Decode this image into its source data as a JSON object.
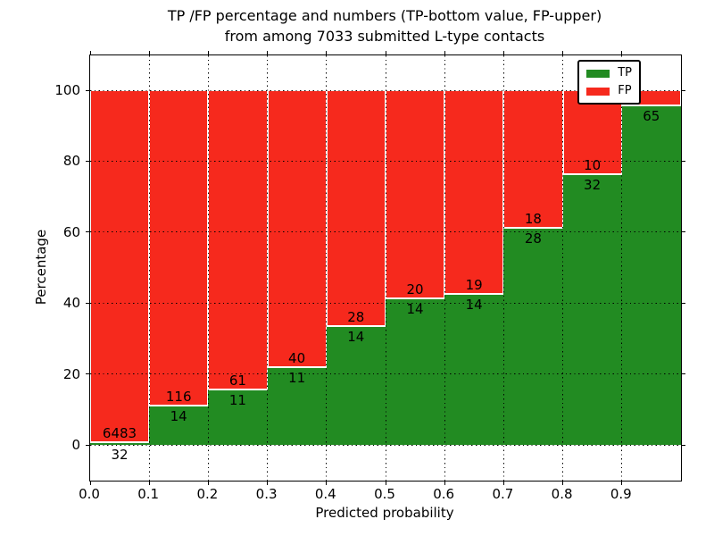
{
  "figure": {
    "title_line1": "TP /FP percentage and numbers (TP-bottom value, FP-upper)",
    "title_line2": "from among 7033 submitted L-type contacts",
    "xlabel": "Predicted probability",
    "ylabel": "Percentage",
    "background_color": "#ffffff",
    "axis_color": "#000000",
    "legend_items": [
      {
        "label": "TP",
        "color": "#228b22"
      },
      {
        "label": "FP",
        "color": "#f6291d"
      }
    ]
  },
  "chart_data": {
    "type": "bar",
    "stacked": true,
    "title": "TP /FP percentage and numbers (TP-bottom value, FP-upper)\nfrom among 7033 submitted L-type contacts",
    "xlabel": "Predicted probability",
    "ylabel": "Percentage",
    "x_bin_edges": [
      0.0,
      0.1,
      0.2,
      0.3,
      0.4,
      0.5,
      0.6,
      0.7,
      0.8,
      0.9,
      1.0
    ],
    "x_tick_labels": [
      "0.0",
      "0.1",
      "0.2",
      "0.3",
      "0.4",
      "0.5",
      "0.6",
      "0.7",
      "0.8",
      "0.9"
    ],
    "y_ticks": [
      0,
      20,
      40,
      60,
      80,
      100
    ],
    "ylim": [
      -10,
      110
    ],
    "xlim": [
      0.0,
      1.0
    ],
    "grid": "dotted",
    "legend_position": "upper right",
    "series": [
      {
        "name": "TP",
        "color": "#228b22",
        "counts": [
          32,
          14,
          11,
          11,
          14,
          14,
          14,
          28,
          32,
          65
        ],
        "percent": [
          0.49,
          10.77,
          15.28,
          21.57,
          33.33,
          41.18,
          42.42,
          60.87,
          76.19,
          95.59
        ]
      },
      {
        "name": "FP",
        "color": "#f6291d",
        "counts": [
          6483,
          116,
          61,
          40,
          28,
          20,
          19,
          18,
          10,
          null
        ],
        "percent": [
          99.51,
          89.23,
          84.72,
          78.43,
          66.67,
          58.82,
          57.58,
          39.13,
          23.81,
          4.41
        ]
      }
    ]
  }
}
